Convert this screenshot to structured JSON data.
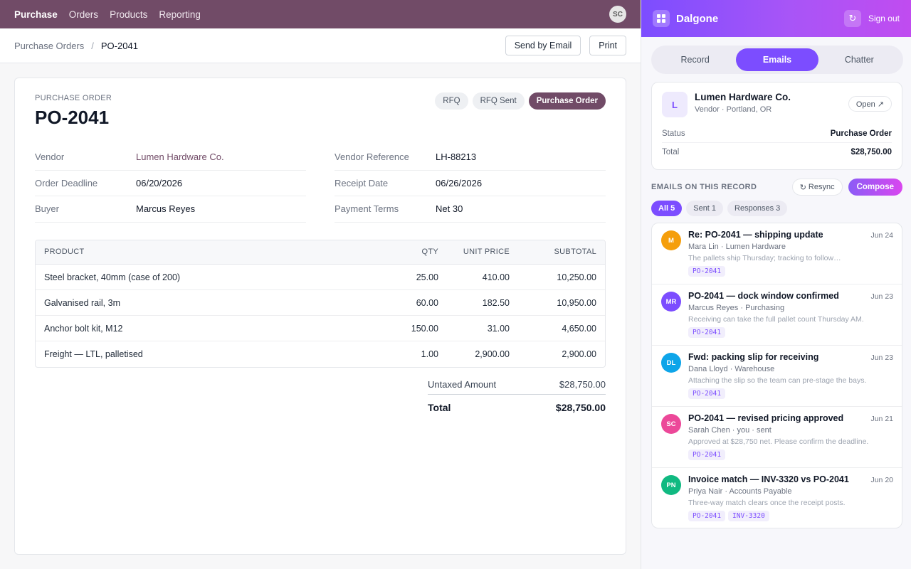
{
  "topnav": {
    "brand": "Purchase",
    "items": [
      "Orders",
      "Products",
      "Reporting"
    ],
    "user_initials": "SC"
  },
  "breadcrumb": {
    "parent": "Purchase Orders",
    "separator": "/",
    "current": "PO-2041"
  },
  "actions": {
    "send_email": "Send by Email",
    "print": "Print"
  },
  "order": {
    "label": "PURCHASE ORDER",
    "number": "PO-2041",
    "statuses": [
      "RFQ",
      "RFQ Sent",
      "Purchase Order"
    ],
    "active_status": "Purchase Order",
    "fields_left": [
      {
        "label": "Vendor",
        "value": "Lumen Hardware Co.",
        "link": true
      },
      {
        "label": "Order Deadline",
        "value": "06/20/2026"
      },
      {
        "label": "Buyer",
        "value": "Marcus Reyes"
      }
    ],
    "fields_right": [
      {
        "label": "Vendor Reference",
        "value": "LH-88213"
      },
      {
        "label": "Receipt Date",
        "value": "06/26/2026"
      },
      {
        "label": "Payment Terms",
        "value": "Net 30"
      }
    ],
    "columns": [
      "PRODUCT",
      "QTY",
      "UNIT PRICE",
      "SUBTOTAL"
    ],
    "lines": [
      {
        "product": "Steel bracket, 40mm (case of 200)",
        "qty": "25.00",
        "unit_price": "410.00",
        "subtotal": "10,250.00"
      },
      {
        "product": "Galvanised rail, 3m",
        "qty": "60.00",
        "unit_price": "182.50",
        "subtotal": "10,950.00"
      },
      {
        "product": "Anchor bolt kit, M12",
        "qty": "150.00",
        "unit_price": "31.00",
        "subtotal": "4,650.00"
      },
      {
        "product": "Freight — LTL, palletised",
        "qty": "1.00",
        "unit_price": "2,900.00",
        "subtotal": "2,900.00"
      }
    ],
    "untaxed_label": "Untaxed Amount",
    "untaxed_value": "$28,750.00",
    "total_label": "Total",
    "total_value": "$28,750.00"
  },
  "panel": {
    "title": "Dalgone",
    "sign_out": "Sign out",
    "tabs": [
      "Record",
      "Emails",
      "Chatter"
    ],
    "active_tab": "Emails",
    "record": {
      "initial": "L",
      "name": "Lumen Hardware Co.",
      "subtitle": "Vendor · Portland, OR",
      "open_label": "Open ↗",
      "status_label": "Status",
      "status_value": "Purchase Order",
      "total_label": "Total",
      "total_value": "$28,750.00"
    },
    "emails_title": "EMAILS ON THIS RECORD",
    "resync_label": "Resync",
    "compose_label": "Compose",
    "filters": [
      "All 5",
      "Sent 1",
      "Responses 3"
    ],
    "active_filter": "All 5",
    "emails": [
      {
        "initials": "M",
        "color": "#f59e0b",
        "subject": "Re: PO-2041 — shipping update",
        "date": "Jun 24",
        "from": "Mara Lin · Lumen Hardware",
        "preview": "The pallets ship Thursday; tracking to follow…",
        "tags": [
          "PO-2041"
        ]
      },
      {
        "initials": "MR",
        "color": "#7c4dff",
        "subject": "PO-2041 — dock window confirmed",
        "date": "Jun 23",
        "from": "Marcus Reyes · Purchasing",
        "preview": "Receiving can take the full pallet count Thursday AM.",
        "tags": [
          "PO-2041"
        ]
      },
      {
        "initials": "DL",
        "color": "#0ea5e9",
        "subject": "Fwd: packing slip for receiving",
        "date": "Jun 23",
        "from": "Dana Lloyd · Warehouse",
        "preview": "Attaching the slip so the team can pre-stage the bays.",
        "tags": [
          "PO-2041"
        ]
      },
      {
        "initials": "SC",
        "color": "#ec4899",
        "subject": "PO-2041 — revised pricing approved",
        "date": "Jun 21",
        "from": "Sarah Chen · you · sent",
        "preview": "Approved at $28,750 net. Please confirm the deadline.",
        "tags": [
          "PO-2041"
        ]
      },
      {
        "initials": "PN",
        "color": "#10b981",
        "subject": "Invoice match — INV-3320 vs PO-2041",
        "date": "Jun 20",
        "from": "Priya Nair · Accounts Payable",
        "preview": "Three-way match clears once the receipt posts.",
        "tags": [
          "PO-2041",
          "INV-3320"
        ]
      }
    ]
  }
}
